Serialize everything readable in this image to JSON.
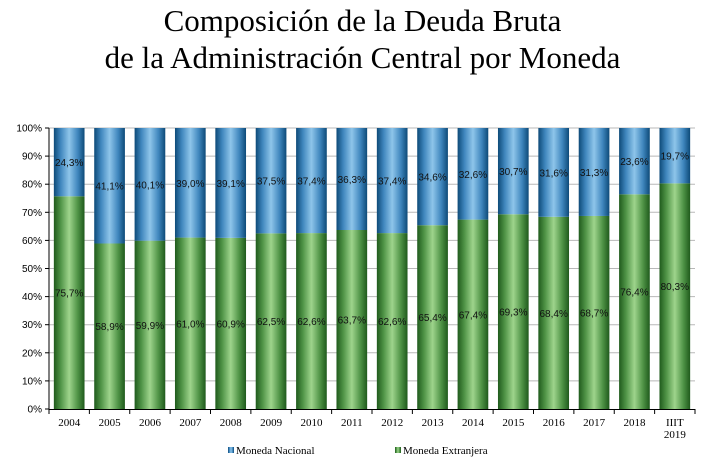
{
  "chart_data": {
    "type": "bar",
    "stacked": true,
    "percent_stacked": true,
    "title": "Composición de la Deuda Bruta de la Administración Central por Moneda",
    "title_lines": [
      "Composición de la Deuda Bruta",
      "de la Administración Central por Moneda"
    ],
    "xlabel": "",
    "ylabel": "",
    "ylim": [
      0,
      100
    ],
    "y_ticks": [
      "0%",
      "10%",
      "20%",
      "30%",
      "40%",
      "50%",
      "60%",
      "70%",
      "80%",
      "90%",
      "100%"
    ],
    "grid": true,
    "legend_position": "bottom",
    "categories": [
      "2004",
      "2005",
      "2006",
      "2007",
      "2008",
      "2009",
      "2010",
      "2011",
      "2012",
      "2013",
      "2014",
      "2015",
      "2016",
      "2017",
      "2018",
      "IIIT 2019"
    ],
    "series": [
      {
        "name": "Moneda Extranjera",
        "color": "#7fbf6f",
        "values": [
          75.7,
          58.9,
          59.9,
          61.0,
          60.9,
          62.5,
          62.6,
          63.7,
          62.6,
          65.4,
          67.4,
          69.3,
          68.4,
          68.7,
          76.4,
          80.3
        ],
        "labels": [
          "75,7%",
          "58,9%",
          "59,9%",
          "61,0%",
          "60,9%",
          "62,5%",
          "62,6%",
          "63,7%",
          "62,6%",
          "65,4%",
          "67,4%",
          "69,3%",
          "68,4%",
          "68,7%",
          "76,4%",
          "80,3%"
        ]
      },
      {
        "name": "Moneda Nacional",
        "color": "#5b9bd5",
        "values": [
          24.3,
          41.1,
          40.1,
          39.0,
          39.1,
          37.5,
          37.4,
          36.3,
          37.4,
          34.6,
          32.6,
          30.7,
          31.6,
          31.3,
          23.6,
          19.7
        ],
        "labels": [
          "24,3%",
          "41,1%",
          "40,1%",
          "39,0%",
          "39,1%",
          "37,5%",
          "37,4%",
          "36,3%",
          "37,4%",
          "34,6%",
          "32,6%",
          "30,7%",
          "31,6%",
          "31,3%",
          "23,6%",
          "19,7%"
        ]
      }
    ],
    "legend": [
      "Moneda Nacional",
      "Moneda Extranjera"
    ]
  }
}
